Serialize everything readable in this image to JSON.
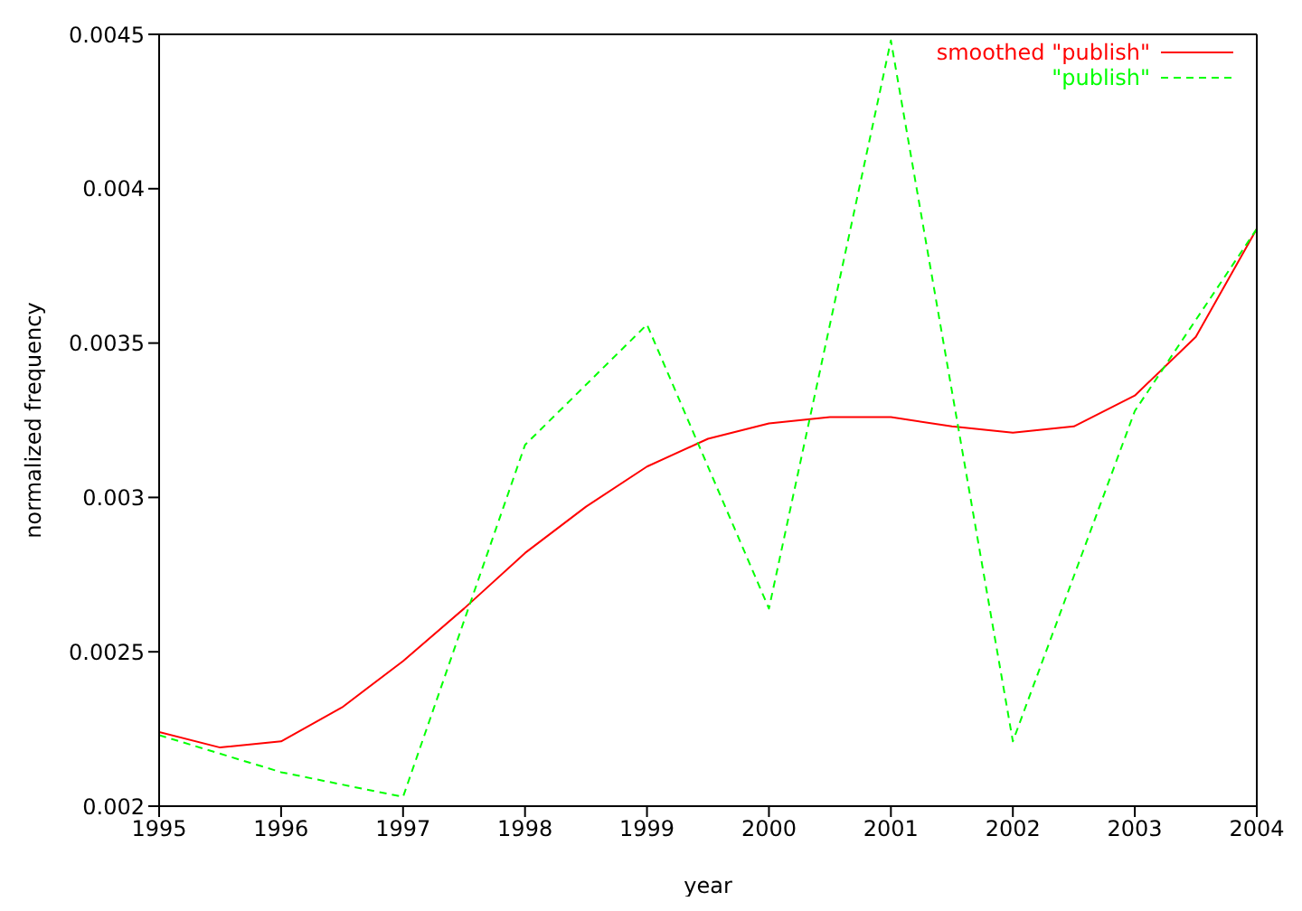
{
  "chart_data": {
    "type": "line",
    "xlabel": "year",
    "ylabel": "normalized frequency",
    "xlim": [
      1995,
      2004
    ],
    "xticks": [
      1995,
      1996,
      1997,
      1998,
      1999,
      2000,
      2001,
      2002,
      2003,
      2004
    ],
    "ylim": [
      0.002,
      0.0045
    ],
    "yticks": [
      0.002,
      0.0025,
      0.003,
      0.0035,
      0.004,
      0.0045
    ],
    "grid": false,
    "legend": "top right",
    "marker": "none",
    "series": [
      {
        "name": "smoothed \"publish\"",
        "color": "#ff0000",
        "line_style": "solid",
        "x": [
          1995,
          1995.5,
          1996,
          1996.5,
          1997,
          1997.5,
          1998,
          1998.5,
          1999,
          1999.5,
          2000,
          2000.5,
          2001,
          2001.5,
          2002,
          2002.5,
          2003,
          2003.5,
          2004
        ],
        "values": [
          0.00224,
          0.00219,
          0.00221,
          0.00232,
          0.00247,
          0.00264,
          0.00282,
          0.00297,
          0.0031,
          0.00319,
          0.00324,
          0.00326,
          0.00326,
          0.00323,
          0.00321,
          0.00323,
          0.00333,
          0.00352,
          0.00387
        ]
      },
      {
        "name": "\"publish\"",
        "color": "#00ff00",
        "line_style": "dashed",
        "x": [
          1995,
          1996,
          1997,
          1998,
          1999,
          2000,
          2001,
          2002,
          2003,
          2004
        ],
        "values": [
          0.00223,
          0.00211,
          0.00203,
          0.00317,
          0.00356,
          0.00264,
          0.00448,
          0.00221,
          0.00328,
          0.00387
        ]
      }
    ]
  }
}
